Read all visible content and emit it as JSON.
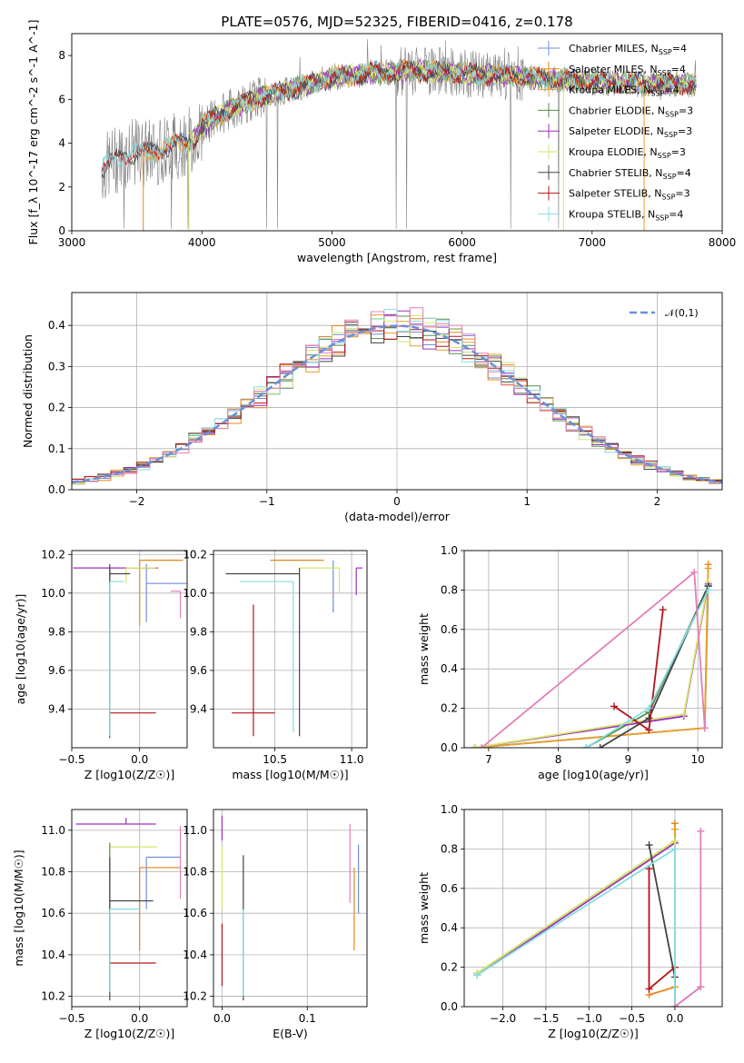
{
  "title": "PLATE=0576, MJD=52325, FIBERID=0416, z=0.178",
  "colors": {
    "Chabrier MILES": "#6f8fd8",
    "Salpeter MILES": "#e8851c",
    "Kroupa MILES": "#e6a12a",
    "Chabrier ELODIE": "#5a8a4a",
    "Salpeter ELODIE": "#9b30c0",
    "Kroupa ELODIE": "#d6e66a",
    "Chabrier STELIB": "#444444",
    "Salpeter STELIB": "#b5141a",
    "Kroupa STELIB": "#86dde0",
    "data": "#808080",
    "normal": "#6a8fd8",
    "pink": "#e37fb8"
  },
  "chart_data": [
    {
      "id": "spectrum",
      "type": "line",
      "xlabel": "wavelength [Angstrom, rest frame]",
      "ylabel": "Flux [f_λ 10^-17 erg cm^-2 s^-1 A^-1]",
      "xlim": [
        3000,
        8000
      ],
      "ylim": [
        0,
        9
      ],
      "xticks": [
        "3000",
        "4000",
        "5000",
        "6000",
        "7000",
        "8000"
      ],
      "yticks": [
        "0",
        "2",
        "4",
        "6",
        "8"
      ],
      "legend_position": "top-right",
      "legend": [
        {
          "label": "Chabrier MILES, N",
          "sub": "SSP",
          "suffix": "=4"
        },
        {
          "label": "Salpeter MILES, N",
          "sub": "SSP",
          "suffix": "=4"
        },
        {
          "label": "Kroupa MILES, N",
          "sub": "SSP",
          "suffix": "=4"
        },
        {
          "label": "Chabrier ELODIE, N",
          "sub": "SSP",
          "suffix": "=3"
        },
        {
          "label": "Salpeter ELODIE, N",
          "sub": "SSP",
          "suffix": "=3"
        },
        {
          "label": "Kroupa ELODIE, N",
          "sub": "SSP",
          "suffix": "=3"
        },
        {
          "label": "Chabrier STELIB, N",
          "sub": "SSP",
          "suffix": "=4"
        },
        {
          "label": "Salpeter STELIB, N",
          "sub": "SSP",
          "suffix": "=3"
        },
        {
          "label": "Kroupa STELIB, N",
          "sub": "SSP",
          "suffix": "=4"
        }
      ],
      "model_continuum": [
        [
          3230,
          2.8
        ],
        [
          3400,
          3.5
        ],
        [
          3600,
          3.6
        ],
        [
          3800,
          3.9
        ],
        [
          3950,
          4.2
        ],
        [
          4000,
          4.8
        ],
        [
          4200,
          5.5
        ],
        [
          4400,
          6.0
        ],
        [
          4700,
          6.5
        ],
        [
          5000,
          7.0
        ],
        [
          5300,
          7.2
        ],
        [
          5600,
          7.3
        ],
        [
          6000,
          7.2
        ],
        [
          6500,
          7.0
        ],
        [
          7000,
          6.8
        ],
        [
          7500,
          6.7
        ],
        [
          7800,
          6.7
        ]
      ]
    },
    {
      "id": "residuals",
      "type": "histogram",
      "xlabel": "(data-model)/error",
      "ylabel": "Normed distribution",
      "xlim": [
        -2.5,
        2.5
      ],
      "ylim": [
        0,
        0.48
      ],
      "xticks": [
        "−2",
        "−1",
        "0",
        "1",
        "2"
      ],
      "yticks": [
        "0.0",
        "0.1",
        "0.2",
        "0.3",
        "0.4"
      ],
      "grid": true,
      "legend": "𝒩(0,1)",
      "legend_position": "top-right",
      "bin_width": 0.1
    },
    {
      "id": "age-vs-Z",
      "type": "scatter",
      "xlabel": "Z [log10(Z/Z☉)]",
      "ylabel": "age [log10(age/yr)]",
      "xlim": [
        -0.5,
        0.35
      ],
      "ylim": [
        9.2,
        10.22
      ],
      "xticks": [
        "−0.5",
        "0.0"
      ],
      "yticks": [
        "9.4",
        "9.6",
        "9.8",
        "10.0",
        "10.2"
      ],
      "grid": true,
      "points": [
        {
          "model": "Chabrier MILES",
          "x": 0.05,
          "y": 10.05,
          "xerr": [
            0.0,
            0.3
          ],
          "yerr": [
            0.2,
            0.1
          ]
        },
        {
          "model": "Salpeter MILES",
          "x": 0.0,
          "y": 10.17,
          "xerr": [
            0.0,
            0.32
          ],
          "yerr": [
            0.32,
            0.0
          ]
        },
        {
          "model": "Kroupa MILES",
          "x": 0.0,
          "y": 10.13,
          "xerr": [
            0.0,
            0.14
          ],
          "yerr": [
            0.3,
            0.0
          ]
        },
        {
          "model": "Chabrier ELODIE",
          "x": -0.22,
          "y": 10.13,
          "xerr": [
            0.0,
            0.0
          ],
          "yerr": [
            0.86,
            0.0
          ]
        },
        {
          "model": "Salpeter ELODIE",
          "x": -0.22,
          "y": 10.13,
          "xerr": [
            0.27,
            0.35
          ],
          "yerr": [
            0.0,
            0.0
          ]
        },
        {
          "model": "Kroupa ELODIE",
          "x": -0.1,
          "y": 10.13,
          "xerr": [
            0.0,
            0.22
          ],
          "yerr": [
            0.08,
            0.0
          ]
        },
        {
          "model": "Chabrier STELIB",
          "x": -0.22,
          "y": 10.1,
          "xerr": [
            0.0,
            0.15
          ],
          "yerr": [
            0.85,
            0.05
          ]
        },
        {
          "model": "Salpeter STELIB",
          "x": -0.22,
          "y": 9.38,
          "xerr": [
            0.0,
            0.34
          ],
          "yerr": [
            0.0,
            0.0
          ]
        },
        {
          "model": "Kroupa STELIB",
          "x": -0.22,
          "y": 10.06,
          "xerr": [
            0.0,
            0.1
          ],
          "yerr": [
            0.8,
            0.0
          ]
        },
        {
          "model": "pink",
          "x": 0.3,
          "y": 10.01,
          "xerr": [
            0.07,
            0.0
          ],
          "yerr": [
            0.14,
            0.0
          ]
        }
      ]
    },
    {
      "id": "age-vs-mass",
      "type": "scatter",
      "xlabel": "mass [log10(M/M☉)]",
      "ylabel": "",
      "xlim": [
        10.1,
        11.1
      ],
      "ylim": [
        9.2,
        10.22
      ],
      "xticks": [
        "10.5",
        "11.0"
      ],
      "yticks": [
        "9.4",
        "9.6",
        "9.8",
        "10.0",
        "10.2"
      ],
      "grid": true,
      "points": [
        {
          "model": "Chabrier MILES",
          "x": 10.88,
          "y": 10.05,
          "xerr": [
            0.0,
            0.0
          ],
          "yerr": [
            0.15,
            0.12
          ]
        },
        {
          "model": "Salpeter MILES",
          "x": 10.82,
          "y": 10.17,
          "xerr": [
            0.35,
            0.0
          ],
          "yerr": [
            0.0,
            0.0
          ]
        },
        {
          "model": "Kroupa ELODIE",
          "x": 10.92,
          "y": 10.13,
          "xerr": [
            0.26,
            0.0
          ],
          "yerr": [
            0.13,
            0.0
          ]
        },
        {
          "model": "Salpeter ELODIE",
          "x": 11.03,
          "y": 10.13,
          "xerr": [
            0.0,
            0.04
          ],
          "yerr": [
            0.14,
            0.0
          ]
        },
        {
          "model": "Chabrier STELIB",
          "x": 10.66,
          "y": 10.1,
          "xerr": [
            0.48,
            0.0
          ],
          "yerr": [
            0.84,
            0.03
          ]
        },
        {
          "model": "Salpeter STELIB",
          "x": 10.36,
          "y": 9.38,
          "xerr": [
            0.14,
            0.14
          ],
          "yerr": [
            0.12,
            0.56
          ]
        },
        {
          "model": "Kroupa STELIB",
          "x": 10.62,
          "y": 10.06,
          "xerr": [
            0.35,
            0.0
          ],
          "yerr": [
            0.78,
            0.0
          ]
        },
        {
          "model": "pink",
          "x": 10.88,
          "y": 10.01,
          "xerr": [
            0.0,
            0.0
          ],
          "yerr": [
            0.02,
            0.0
          ]
        }
      ]
    },
    {
      "id": "mass-weight-vs-age",
      "type": "line",
      "xlabel": "age [log10(age/yr)]",
      "ylabel": "mass weight",
      "xlim": [
        6.65,
        10.35
      ],
      "ylim": [
        0,
        1
      ],
      "xticks": [
        "7",
        "8",
        "9",
        "10"
      ],
      "yticks": [
        "0.0",
        "0.2",
        "0.4",
        "0.6",
        "0.8",
        "1.0"
      ],
      "grid": true,
      "series": [
        {
          "model": "Chabrier MILES",
          "x": [
            6.8,
            10.1,
            10.15
          ],
          "y": [
            0.0,
            0.1,
            0.82
          ]
        },
        {
          "model": "Salpeter MILES",
          "x": [
            6.8,
            10.1,
            10.15
          ],
          "y": [
            0.0,
            0.1,
            0.93
          ]
        },
        {
          "model": "Kroupa MILES",
          "x": [
            6.8,
            10.1,
            10.15
          ],
          "y": [
            0.0,
            0.1,
            0.91
          ]
        },
        {
          "model": "Chabrier ELODIE",
          "x": [
            8.4,
            9.3,
            10.15
          ],
          "y": [
            0.0,
            0.18,
            0.82
          ]
        },
        {
          "model": "Salpeter ELODIE",
          "x": [
            6.8,
            9.8,
            10.15
          ],
          "y": [
            0.0,
            0.16,
            0.83
          ]
        },
        {
          "model": "Kroupa ELODIE",
          "x": [
            6.8,
            9.8,
            10.15
          ],
          "y": [
            0.0,
            0.17,
            0.84
          ]
        },
        {
          "model": "Chabrier STELIB",
          "x": [
            8.6,
            9.3,
            10.15
          ],
          "y": [
            0.0,
            0.15,
            0.82
          ]
        },
        {
          "model": "Salpeter STELIB",
          "x": [
            8.8,
            9.3,
            9.5
          ],
          "y": [
            0.21,
            0.09,
            0.7
          ]
        },
        {
          "model": "Kroupa STELIB",
          "x": [
            8.4,
            9.3,
            10.15
          ],
          "y": [
            0.0,
            0.2,
            0.8
          ]
        },
        {
          "model": "pink",
          "x": [
            6.9,
            9.95,
            10.1
          ],
          "y": [
            0.0,
            0.89,
            0.1
          ]
        }
      ]
    },
    {
      "id": "mass-vs-Z",
      "type": "scatter",
      "xlabel": "Z [log10(Z/Z☉)]",
      "ylabel": "mass [log10(M/M☉)]",
      "xlim": [
        -0.5,
        0.35
      ],
      "ylim": [
        10.15,
        11.1
      ],
      "xticks": [
        "−0.5",
        "0.0"
      ],
      "yticks": [
        "10.2",
        "10.4",
        "10.6",
        "10.8",
        "11.0"
      ],
      "grid": true,
      "points": [
        {
          "model": "Chabrier MILES",
          "x": 0.05,
          "y": 10.87,
          "xerr": [
            0.0,
            0.25
          ],
          "yerr": [
            0.25,
            0.0
          ]
        },
        {
          "model": "Salpeter MILES",
          "x": 0.0,
          "y": 10.82,
          "xerr": [
            0.0,
            0.3
          ],
          "yerr": [
            0.4,
            0.0
          ]
        },
        {
          "model": "Kroupa ELODIE",
          "x": -0.22,
          "y": 10.92,
          "xerr": [
            0.0,
            0.35
          ],
          "yerr": [
            0.0,
            0.0
          ]
        },
        {
          "model": "Salpeter ELODIE",
          "x": -0.1,
          "y": 11.03,
          "xerr": [
            0.37,
            0.22
          ],
          "yerr": [
            0.0,
            0.03
          ]
        },
        {
          "model": "Chabrier ELODIE",
          "x": -0.22,
          "y": 10.94,
          "xerr": [
            0.0,
            0.0
          ],
          "yerr": [
            0.72,
            0.0
          ]
        },
        {
          "model": "Chabrier STELIB",
          "x": -0.22,
          "y": 10.66,
          "xerr": [
            0.0,
            0.32
          ],
          "yerr": [
            0.48,
            0.21
          ]
        },
        {
          "model": "Salpeter STELIB",
          "x": -0.22,
          "y": 10.36,
          "xerr": [
            0.0,
            0.34
          ],
          "yerr": [
            0.0,
            0.0
          ]
        },
        {
          "model": "Kroupa STELIB",
          "x": -0.22,
          "y": 10.62,
          "xerr": [
            0.0,
            0.22
          ],
          "yerr": [
            0.4,
            0.0
          ]
        },
        {
          "model": "pink",
          "x": 0.3,
          "y": 10.87,
          "xerr": [
            0.0,
            0.0
          ],
          "yerr": [
            0.2,
            0.15
          ]
        }
      ]
    },
    {
      "id": "mass-vs-EBV",
      "type": "scatter",
      "xlabel": "E(B-V)",
      "ylabel": "",
      "xlim": [
        -0.01,
        0.17
      ],
      "ylim": [
        10.15,
        11.1
      ],
      "xticks": [
        "0.0",
        "0.1"
      ],
      "yticks": [
        "10.2",
        "10.4",
        "10.6",
        "10.8",
        "11.0"
      ],
      "grid": true,
      "points": [
        {
          "model": "Salpeter ELODIE",
          "x": 0.0,
          "y": 10.95,
          "yerr": [
            0.0,
            0.12
          ]
        },
        {
          "model": "Kroupa ELODIE",
          "x": 0.0,
          "y": 10.92,
          "yerr": [
            0.3,
            0.0
          ]
        },
        {
          "model": "Salpeter STELIB",
          "x": 0.0,
          "y": 10.4,
          "yerr": [
            0.15,
            0.15
          ]
        },
        {
          "model": "Chabrier STELIB",
          "x": 0.025,
          "y": 10.7,
          "yerr": [
            0.52,
            0.18
          ]
        },
        {
          "model": "Kroupa STELIB",
          "x": 0.025,
          "y": 10.62,
          "yerr": [
            0.42,
            0.0
          ]
        },
        {
          "model": "pink",
          "x": 0.15,
          "y": 10.87,
          "yerr": [
            0.22,
            0.16
          ]
        },
        {
          "model": "Salpeter MILES",
          "x": 0.155,
          "y": 10.82,
          "yerr": [
            0.4,
            0.0
          ]
        },
        {
          "model": "Chabrier MILES",
          "x": 0.16,
          "y": 10.85,
          "yerr": [
            0.25,
            0.08
          ]
        }
      ]
    },
    {
      "id": "mass-weight-vs-Z",
      "type": "line",
      "xlabel": "Z [log10(Z/Z☉)]",
      "ylabel": "mass weight",
      "xlim": [
        -2.45,
        0.55
      ],
      "ylim": [
        0,
        1
      ],
      "xticks": [
        "−2.0",
        "−1.5",
        "−1.0",
        "−0.5",
        "0.0"
      ],
      "yticks": [
        "0.0",
        "0.2",
        "0.4",
        "0.6",
        "0.8",
        "1.0"
      ],
      "grid": true,
      "series": [
        {
          "model": "Chabrier MILES",
          "x": [
            0.0,
            0.3
          ],
          "y": [
            0.0,
            0.1
          ]
        },
        {
          "model": "Salpeter MILES",
          "x": [
            -0.3,
            0.0,
            0.0
          ],
          "y": [
            0.06,
            0.1,
            0.93
          ]
        },
        {
          "model": "Kroupa MILES",
          "x": [
            0.0,
            0.0
          ],
          "y": [
            0.1,
            0.9
          ]
        },
        {
          "model": "Chabrier ELODIE",
          "x": [
            -2.3,
            0.0
          ],
          "y": [
            0.17,
            0.84
          ]
        },
        {
          "model": "Salpeter ELODIE",
          "x": [
            -2.3,
            0.0
          ],
          "y": [
            0.16,
            0.83
          ]
        },
        {
          "model": "Kroupa ELODIE",
          "x": [
            -2.3,
            0.0,
            0.0
          ],
          "y": [
            0.17,
            0.84,
            0.0
          ]
        },
        {
          "model": "Chabrier STELIB",
          "x": [
            -0.3,
            0.0,
            0.0
          ],
          "y": [
            0.82,
            0.15,
            0.0
          ]
        },
        {
          "model": "Salpeter STELIB",
          "x": [
            -0.3,
            -0.3,
            0.0
          ],
          "y": [
            0.7,
            0.09,
            0.2
          ]
        },
        {
          "model": "Kroupa STELIB",
          "x": [
            -2.3,
            0.0,
            0.0
          ],
          "y": [
            0.16,
            0.8,
            0.0
          ]
        },
        {
          "model": "pink",
          "x": [
            0.3,
            0.3,
            0.0
          ],
          "y": [
            0.89,
            0.1,
            0.0
          ]
        }
      ]
    }
  ]
}
